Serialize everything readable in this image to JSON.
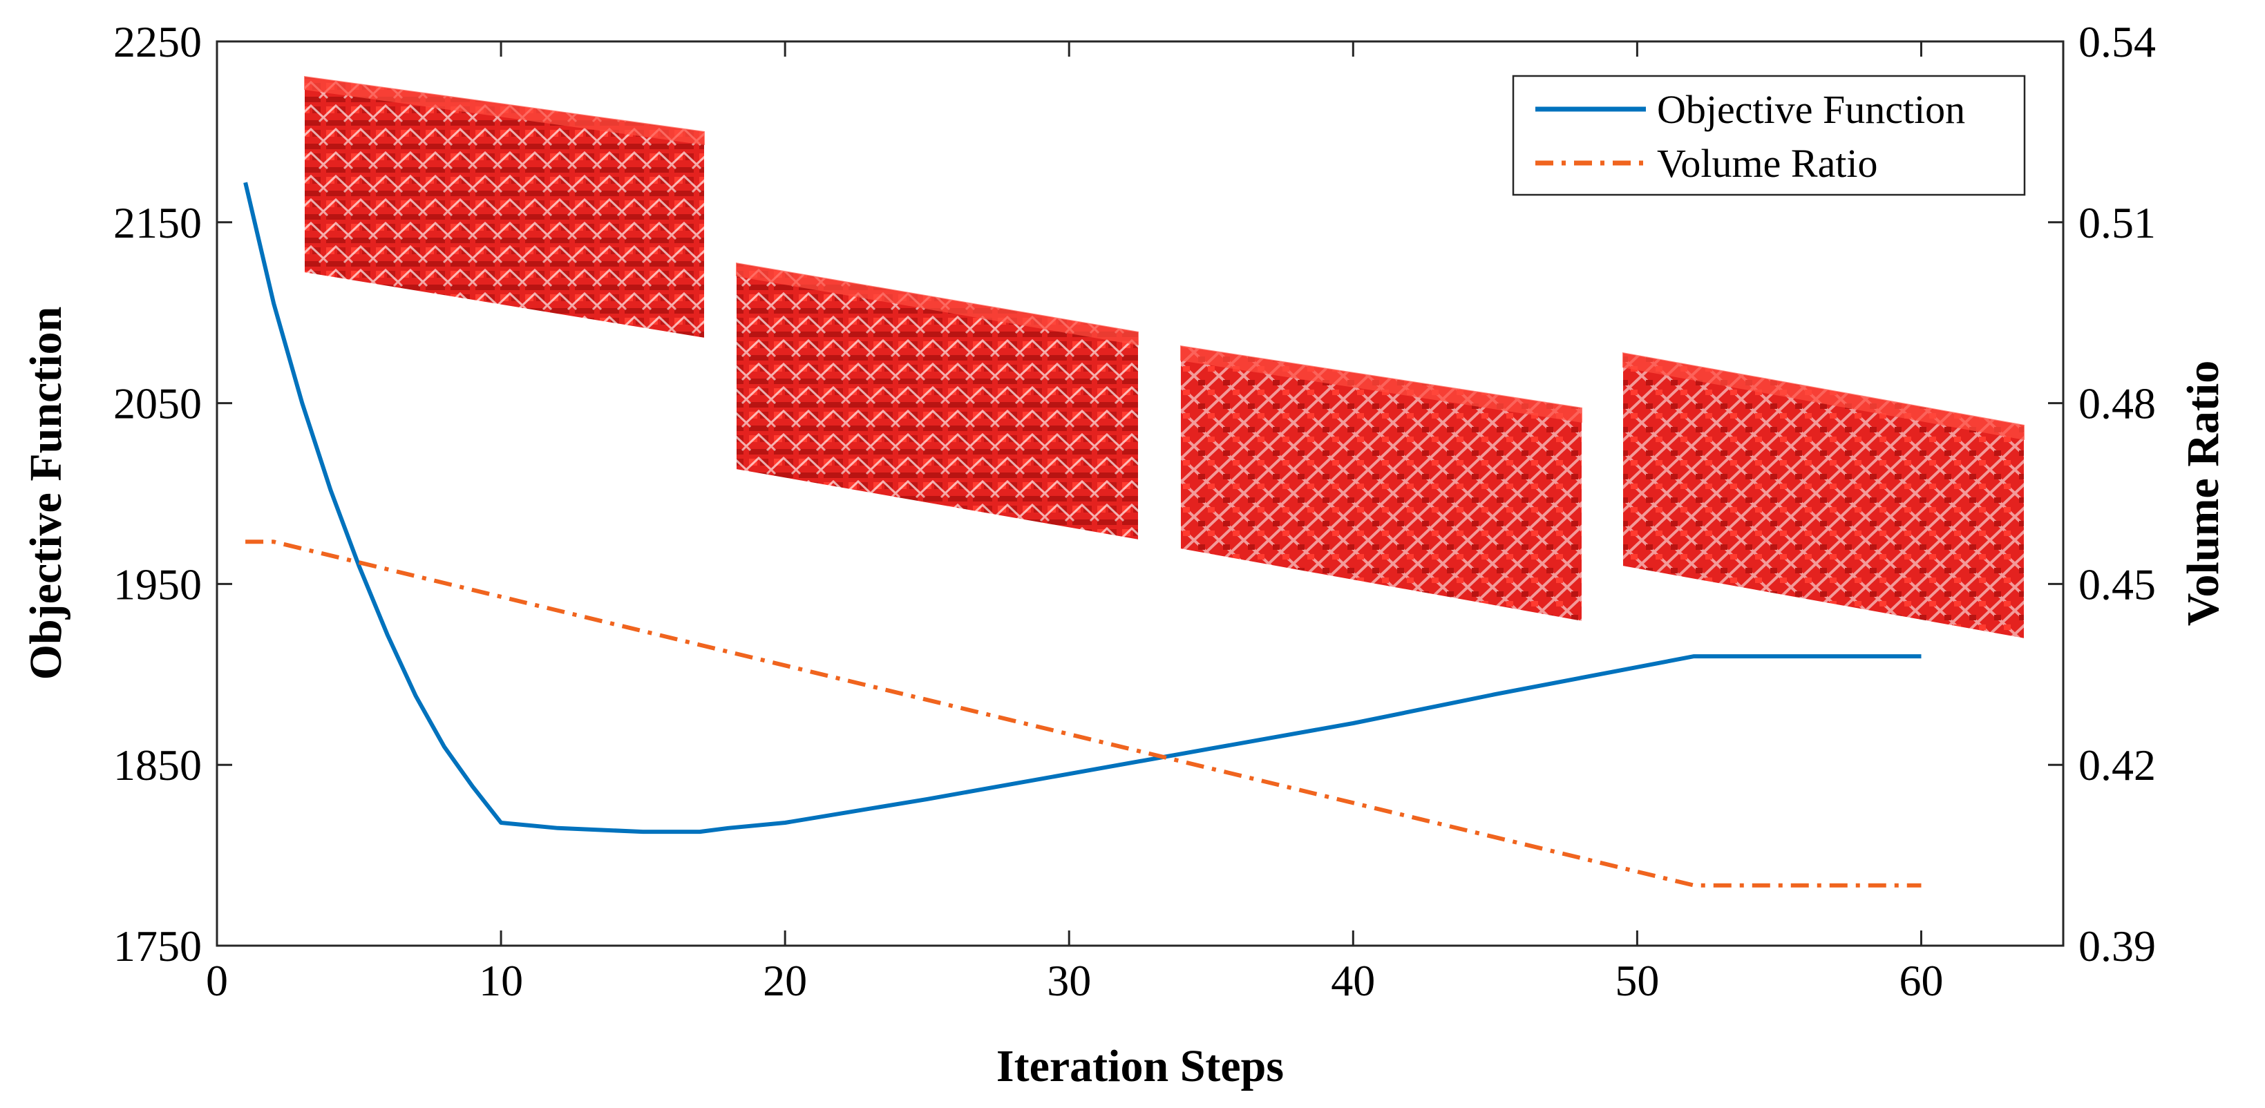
{
  "chart_data": {
    "type": "line",
    "title": "",
    "xlabel": "Iteration Steps",
    "ylabel_left": "Objective Function",
    "ylabel_right": "Volume Ratio",
    "xlim": [
      0,
      65
    ],
    "ylim_left": [
      1750,
      2250
    ],
    "ylim_right": [
      0.39,
      0.54
    ],
    "xticks": [
      "0",
      "10",
      "20",
      "30",
      "40",
      "50",
      "60"
    ],
    "yticks_left": [
      "1750",
      "1850",
      "1950",
      "2050",
      "2150",
      "2250"
    ],
    "yticks_right": [
      "0.39",
      "0.42",
      "0.45",
      "0.48",
      "0.51",
      "0.54"
    ],
    "grid": false,
    "legend_position": "top-right",
    "series": [
      {
        "name": "Objective Function",
        "axis": "left",
        "color": "#0072bd",
        "style": "solid",
        "x": [
          1,
          2,
          3,
          4,
          5,
          6,
          7,
          8,
          9,
          10,
          12,
          15,
          17,
          18,
          20,
          25,
          30,
          35,
          40,
          45,
          50,
          52,
          55,
          60
        ],
        "y": [
          2172,
          2105,
          2050,
          2002,
          1960,
          1922,
          1888,
          1860,
          1838,
          1818,
          1815,
          1813,
          1813,
          1815,
          1818,
          1831,
          1845,
          1859,
          1873,
          1889,
          1904,
          1910,
          1910,
          1910
        ]
      },
      {
        "name": "Volume Ratio",
        "axis": "right",
        "color": "#f0641e",
        "style": "dash-dot",
        "x": [
          1,
          2,
          52,
          60
        ],
        "y": [
          0.457,
          0.457,
          0.4,
          0.4
        ]
      }
    ],
    "inset_images": [
      {
        "name": "lattice-structure-1",
        "color": "#e8201e",
        "variant": "initial"
      },
      {
        "name": "lattice-structure-2",
        "color": "#e8201e",
        "variant": "early"
      },
      {
        "name": "lattice-structure-3",
        "color": "#e8201e",
        "variant": "middle"
      },
      {
        "name": "lattice-structure-4",
        "color": "#e8201e",
        "variant": "final"
      }
    ]
  }
}
